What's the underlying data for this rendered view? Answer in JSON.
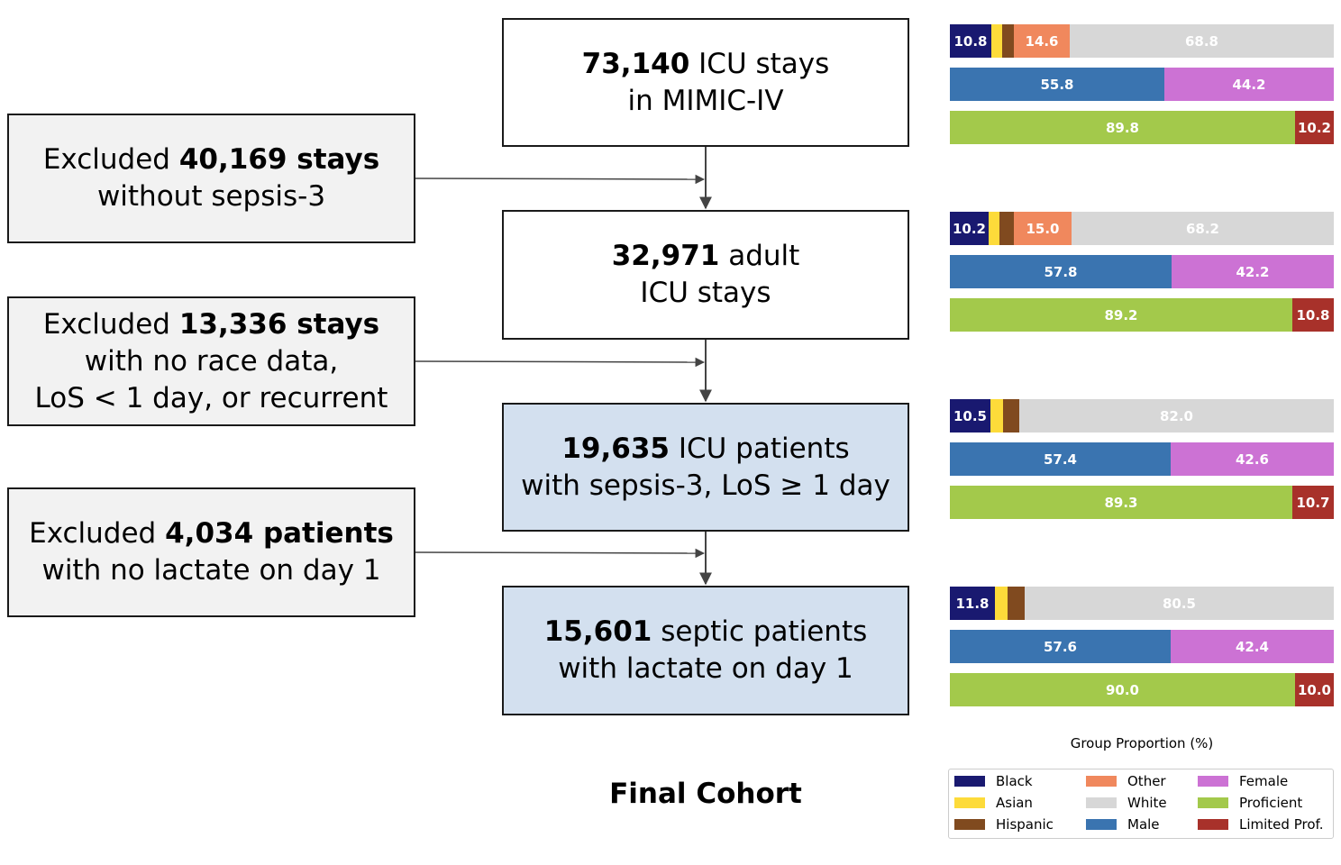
{
  "flow": {
    "main": [
      {
        "bold": "73,140",
        "rest": " ICU stays",
        "line2": "in MIMIC-IV"
      },
      {
        "bold": "32,971",
        "rest": " adult",
        "line2": "ICU stays"
      },
      {
        "bold": "19,635",
        "rest": " ICU patients",
        "line2": "with sepsis-3, LoS ≥ 1 day"
      },
      {
        "bold": "15,601",
        "rest": " septic patients",
        "line2": "with lactate on day 1"
      }
    ],
    "excluded": [
      {
        "pre": "Excluded ",
        "bold": "40,169 stays",
        "lines": [
          "without sepsis-3"
        ]
      },
      {
        "pre": "Excluded ",
        "bold": "13,336 stays",
        "lines": [
          "with no race data,",
          "LoS < 1 day, or recurrent"
        ]
      },
      {
        "pre": "Excluded ",
        "bold": "4,034 patients",
        "lines": [
          "with no lactate on day 1"
        ]
      }
    ],
    "final_label": "Final Cohort"
  },
  "chart_data": {
    "type": "bar",
    "orientation": "horizontal-stacked",
    "xlabel": "Group Proportion (%)",
    "xlim": [
      0,
      100
    ],
    "colors": {
      "Black": "#191970",
      "Asian": "#fddb3a",
      "Hispanic": "#804a1f",
      "Other": "#f0885d",
      "White": "#d7d7d7",
      "Male": "#3a74b0",
      "Female": "#cc72d4",
      "Proficient": "#a3c94b",
      "Limited Prof.": "#a8312a"
    },
    "legend": [
      "Black",
      "Asian",
      "Hispanic",
      "Other",
      "White",
      "Male",
      "Female",
      "Proficient",
      "Limited Prof."
    ],
    "stages": [
      {
        "race": [
          {
            "group": "Black",
            "value": 10.8,
            "label": "10.8"
          },
          {
            "group": "Asian",
            "value": 2.8,
            "label": ""
          },
          {
            "group": "Hispanic",
            "value": 3.0,
            "label": ""
          },
          {
            "group": "Other",
            "value": 14.6,
            "label": "14.6"
          },
          {
            "group": "White",
            "value": 68.8,
            "label": "68.8"
          }
        ],
        "sex": [
          {
            "group": "Male",
            "value": 55.8,
            "label": "55.8"
          },
          {
            "group": "Female",
            "value": 44.2,
            "label": "44.2"
          }
        ],
        "language": [
          {
            "group": "Proficient",
            "value": 89.8,
            "label": "89.8"
          },
          {
            "group": "Limited Prof.",
            "value": 10.2,
            "label": "10.2"
          }
        ]
      },
      {
        "race": [
          {
            "group": "Black",
            "value": 10.2,
            "label": "10.2"
          },
          {
            "group": "Asian",
            "value": 2.8,
            "label": ""
          },
          {
            "group": "Hispanic",
            "value": 3.8,
            "label": ""
          },
          {
            "group": "Other",
            "value": 15.0,
            "label": "15.0"
          },
          {
            "group": "White",
            "value": 68.2,
            "label": "68.2"
          }
        ],
        "sex": [
          {
            "group": "Male",
            "value": 57.8,
            "label": "57.8"
          },
          {
            "group": "Female",
            "value": 42.2,
            "label": "42.2"
          }
        ],
        "language": [
          {
            "group": "Proficient",
            "value": 89.2,
            "label": "89.2"
          },
          {
            "group": "Limited Prof.",
            "value": 10.8,
            "label": "10.8"
          }
        ]
      },
      {
        "race": [
          {
            "group": "Black",
            "value": 10.5,
            "label": "10.5"
          },
          {
            "group": "Asian",
            "value": 3.3,
            "label": ""
          },
          {
            "group": "Hispanic",
            "value": 4.2,
            "label": ""
          },
          {
            "group": "White",
            "value": 82.0,
            "label": "82.0"
          }
        ],
        "sex": [
          {
            "group": "Male",
            "value": 57.4,
            "label": "57.4"
          },
          {
            "group": "Female",
            "value": 42.6,
            "label": "42.6"
          }
        ],
        "language": [
          {
            "group": "Proficient",
            "value": 89.3,
            "label": "89.3"
          },
          {
            "group": "Limited Prof.",
            "value": 10.7,
            "label": "10.7"
          }
        ]
      },
      {
        "race": [
          {
            "group": "Black",
            "value": 11.8,
            "label": "11.8"
          },
          {
            "group": "Asian",
            "value": 3.3,
            "label": ""
          },
          {
            "group": "Hispanic",
            "value": 4.4,
            "label": ""
          },
          {
            "group": "White",
            "value": 80.5,
            "label": "80.5"
          }
        ],
        "sex": [
          {
            "group": "Male",
            "value": 57.6,
            "label": "57.6"
          },
          {
            "group": "Female",
            "value": 42.4,
            "label": "42.4"
          }
        ],
        "language": [
          {
            "group": "Proficient",
            "value": 90.0,
            "label": "90.0"
          },
          {
            "group": "Limited Prof.",
            "value": 10.0,
            "label": "10.0"
          }
        ]
      }
    ]
  }
}
